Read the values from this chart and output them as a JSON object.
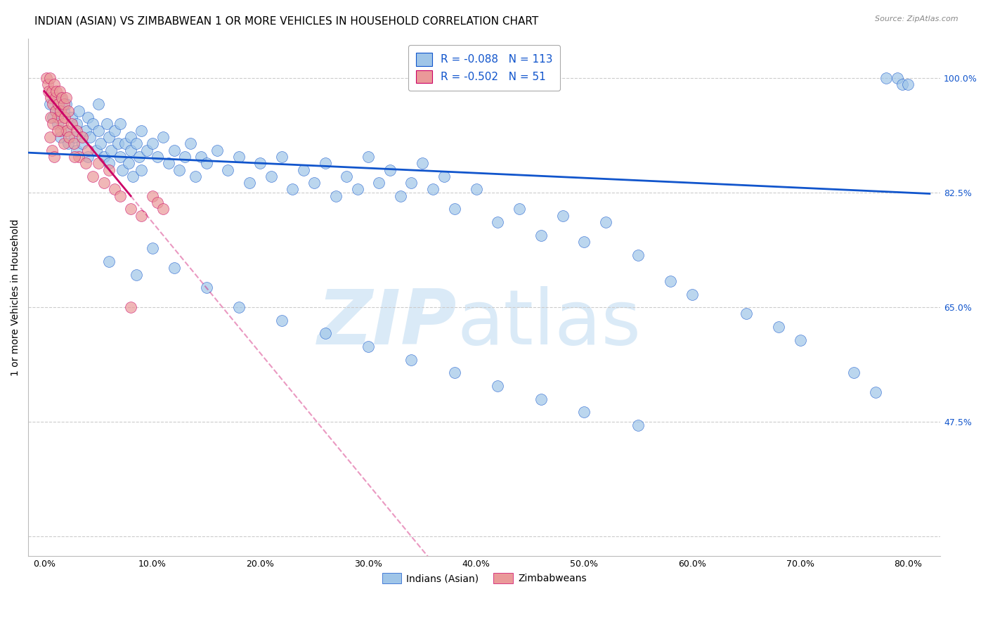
{
  "title": "INDIAN (ASIAN) VS ZIMBABWEAN 1 OR MORE VEHICLES IN HOUSEHOLD CORRELATION CHART",
  "source": "Source: ZipAtlas.com",
  "ylabel": "1 or more Vehicles in Household",
  "xlabel_vals": [
    0.0,
    10.0,
    20.0,
    30.0,
    40.0,
    50.0,
    60.0,
    70.0,
    80.0
  ],
  "ytick_vals": [
    30.0,
    47.5,
    65.0,
    82.5,
    100.0
  ],
  "ytick_labels": [
    "",
    "47.5%",
    "65.0%",
    "82.5%",
    "100.0%"
  ],
  "xlim": [
    -1.5,
    83.0
  ],
  "ylim": [
    27.0,
    106.0
  ],
  "blue_R": -0.088,
  "blue_N": 113,
  "pink_R": -0.502,
  "pink_N": 51,
  "blue_color": "#9fc5e8",
  "pink_color": "#ea9999",
  "blue_line_color": "#1155cc",
  "pink_line_color": "#cc0066",
  "watermark_color": "#daeaf7",
  "background_color": "#ffffff",
  "grid_color": "#cccccc",
  "title_fontsize": 11,
  "label_fontsize": 10,
  "tick_fontsize": 9,
  "blue_scatter_x": [
    0.5,
    0.8,
    1.0,
    1.2,
    1.5,
    1.5,
    1.8,
    2.0,
    2.0,
    2.2,
    2.5,
    2.8,
    3.0,
    3.0,
    3.2,
    3.5,
    3.8,
    4.0,
    4.0,
    4.2,
    4.5,
    4.8,
    5.0,
    5.0,
    5.2,
    5.5,
    5.8,
    6.0,
    6.0,
    6.2,
    6.5,
    6.8,
    7.0,
    7.0,
    7.2,
    7.5,
    7.8,
    8.0,
    8.0,
    8.2,
    8.5,
    8.8,
    9.0,
    9.0,
    9.5,
    10.0,
    10.5,
    11.0,
    11.5,
    12.0,
    12.5,
    13.0,
    13.5,
    14.0,
    14.5,
    15.0,
    16.0,
    17.0,
    18.0,
    19.0,
    20.0,
    21.0,
    22.0,
    23.0,
    24.0,
    25.0,
    26.0,
    27.0,
    28.0,
    29.0,
    30.0,
    31.0,
    32.0,
    33.0,
    34.0,
    35.0,
    36.0,
    37.0,
    38.0,
    40.0,
    42.0,
    44.0,
    46.0,
    48.0,
    50.0,
    52.0,
    55.0,
    58.0,
    60.0,
    65.0,
    68.0,
    70.0,
    75.0,
    77.0,
    78.0,
    79.0,
    79.5,
    80.0,
    6.0,
    8.5,
    10.0,
    12.0,
    15.0,
    18.0,
    22.0,
    26.0,
    30.0,
    34.0,
    38.0,
    42.0,
    46.0,
    50.0,
    55.0
  ],
  "blue_scatter_y": [
    96.0,
    94.0,
    95.0,
    93.0,
    97.0,
    91.0,
    95.0,
    92.0,
    96.0,
    90.0,
    94.0,
    91.0,
    93.0,
    89.0,
    95.0,
    90.0,
    92.0,
    88.0,
    94.0,
    91.0,
    93.0,
    89.0,
    92.0,
    96.0,
    90.0,
    88.0,
    93.0,
    91.0,
    87.0,
    89.0,
    92.0,
    90.0,
    88.0,
    93.0,
    86.0,
    90.0,
    87.0,
    91.0,
    89.0,
    85.0,
    90.0,
    88.0,
    92.0,
    86.0,
    89.0,
    90.0,
    88.0,
    91.0,
    87.0,
    89.0,
    86.0,
    88.0,
    90.0,
    85.0,
    88.0,
    87.0,
    89.0,
    86.0,
    88.0,
    84.0,
    87.0,
    85.0,
    88.0,
    83.0,
    86.0,
    84.0,
    87.0,
    82.0,
    85.0,
    83.0,
    88.0,
    84.0,
    86.0,
    82.0,
    84.0,
    87.0,
    83.0,
    85.0,
    80.0,
    83.0,
    78.0,
    80.0,
    76.0,
    79.0,
    75.0,
    78.0,
    73.0,
    69.0,
    67.0,
    64.0,
    62.0,
    60.0,
    55.0,
    52.0,
    100.0,
    100.0,
    99.0,
    99.0,
    72.0,
    70.0,
    74.0,
    71.0,
    68.0,
    65.0,
    63.0,
    61.0,
    59.0,
    57.0,
    55.0,
    53.0,
    51.0,
    49.0,
    47.0
  ],
  "pink_scatter_x": [
    0.2,
    0.3,
    0.4,
    0.5,
    0.6,
    0.7,
    0.8,
    0.9,
    1.0,
    1.0,
    1.1,
    1.2,
    1.3,
    1.4,
    1.5,
    1.5,
    1.6,
    1.7,
    1.8,
    1.8,
    1.9,
    2.0,
    2.1,
    2.2,
    2.3,
    2.5,
    2.7,
    3.0,
    3.2,
    3.5,
    3.8,
    4.0,
    4.5,
    5.0,
    5.5,
    6.0,
    6.5,
    7.0,
    8.0,
    9.0,
    10.0,
    10.5,
    11.0,
    2.8,
    0.5,
    0.6,
    0.7,
    0.8,
    0.9,
    1.2,
    8.0
  ],
  "pink_scatter_y": [
    100.0,
    99.0,
    98.0,
    100.0,
    97.0,
    98.0,
    96.0,
    99.0,
    97.0,
    95.0,
    98.0,
    94.0,
    96.0,
    98.0,
    95.0,
    92.0,
    97.0,
    93.0,
    96.0,
    90.0,
    94.0,
    97.0,
    92.0,
    95.0,
    91.0,
    93.0,
    90.0,
    92.0,
    88.0,
    91.0,
    87.0,
    89.0,
    85.0,
    87.0,
    84.0,
    86.0,
    83.0,
    82.0,
    80.0,
    79.0,
    82.0,
    81.0,
    80.0,
    88.0,
    91.0,
    94.0,
    89.0,
    93.0,
    88.0,
    92.0,
    65.0
  ],
  "pink_line_x_end": 8.0,
  "pink_line_dash_end": 40.0,
  "blue_line_intercept": 88.5,
  "blue_line_slope": -0.075,
  "pink_line_intercept": 98.0,
  "pink_line_slope": -2.0
}
